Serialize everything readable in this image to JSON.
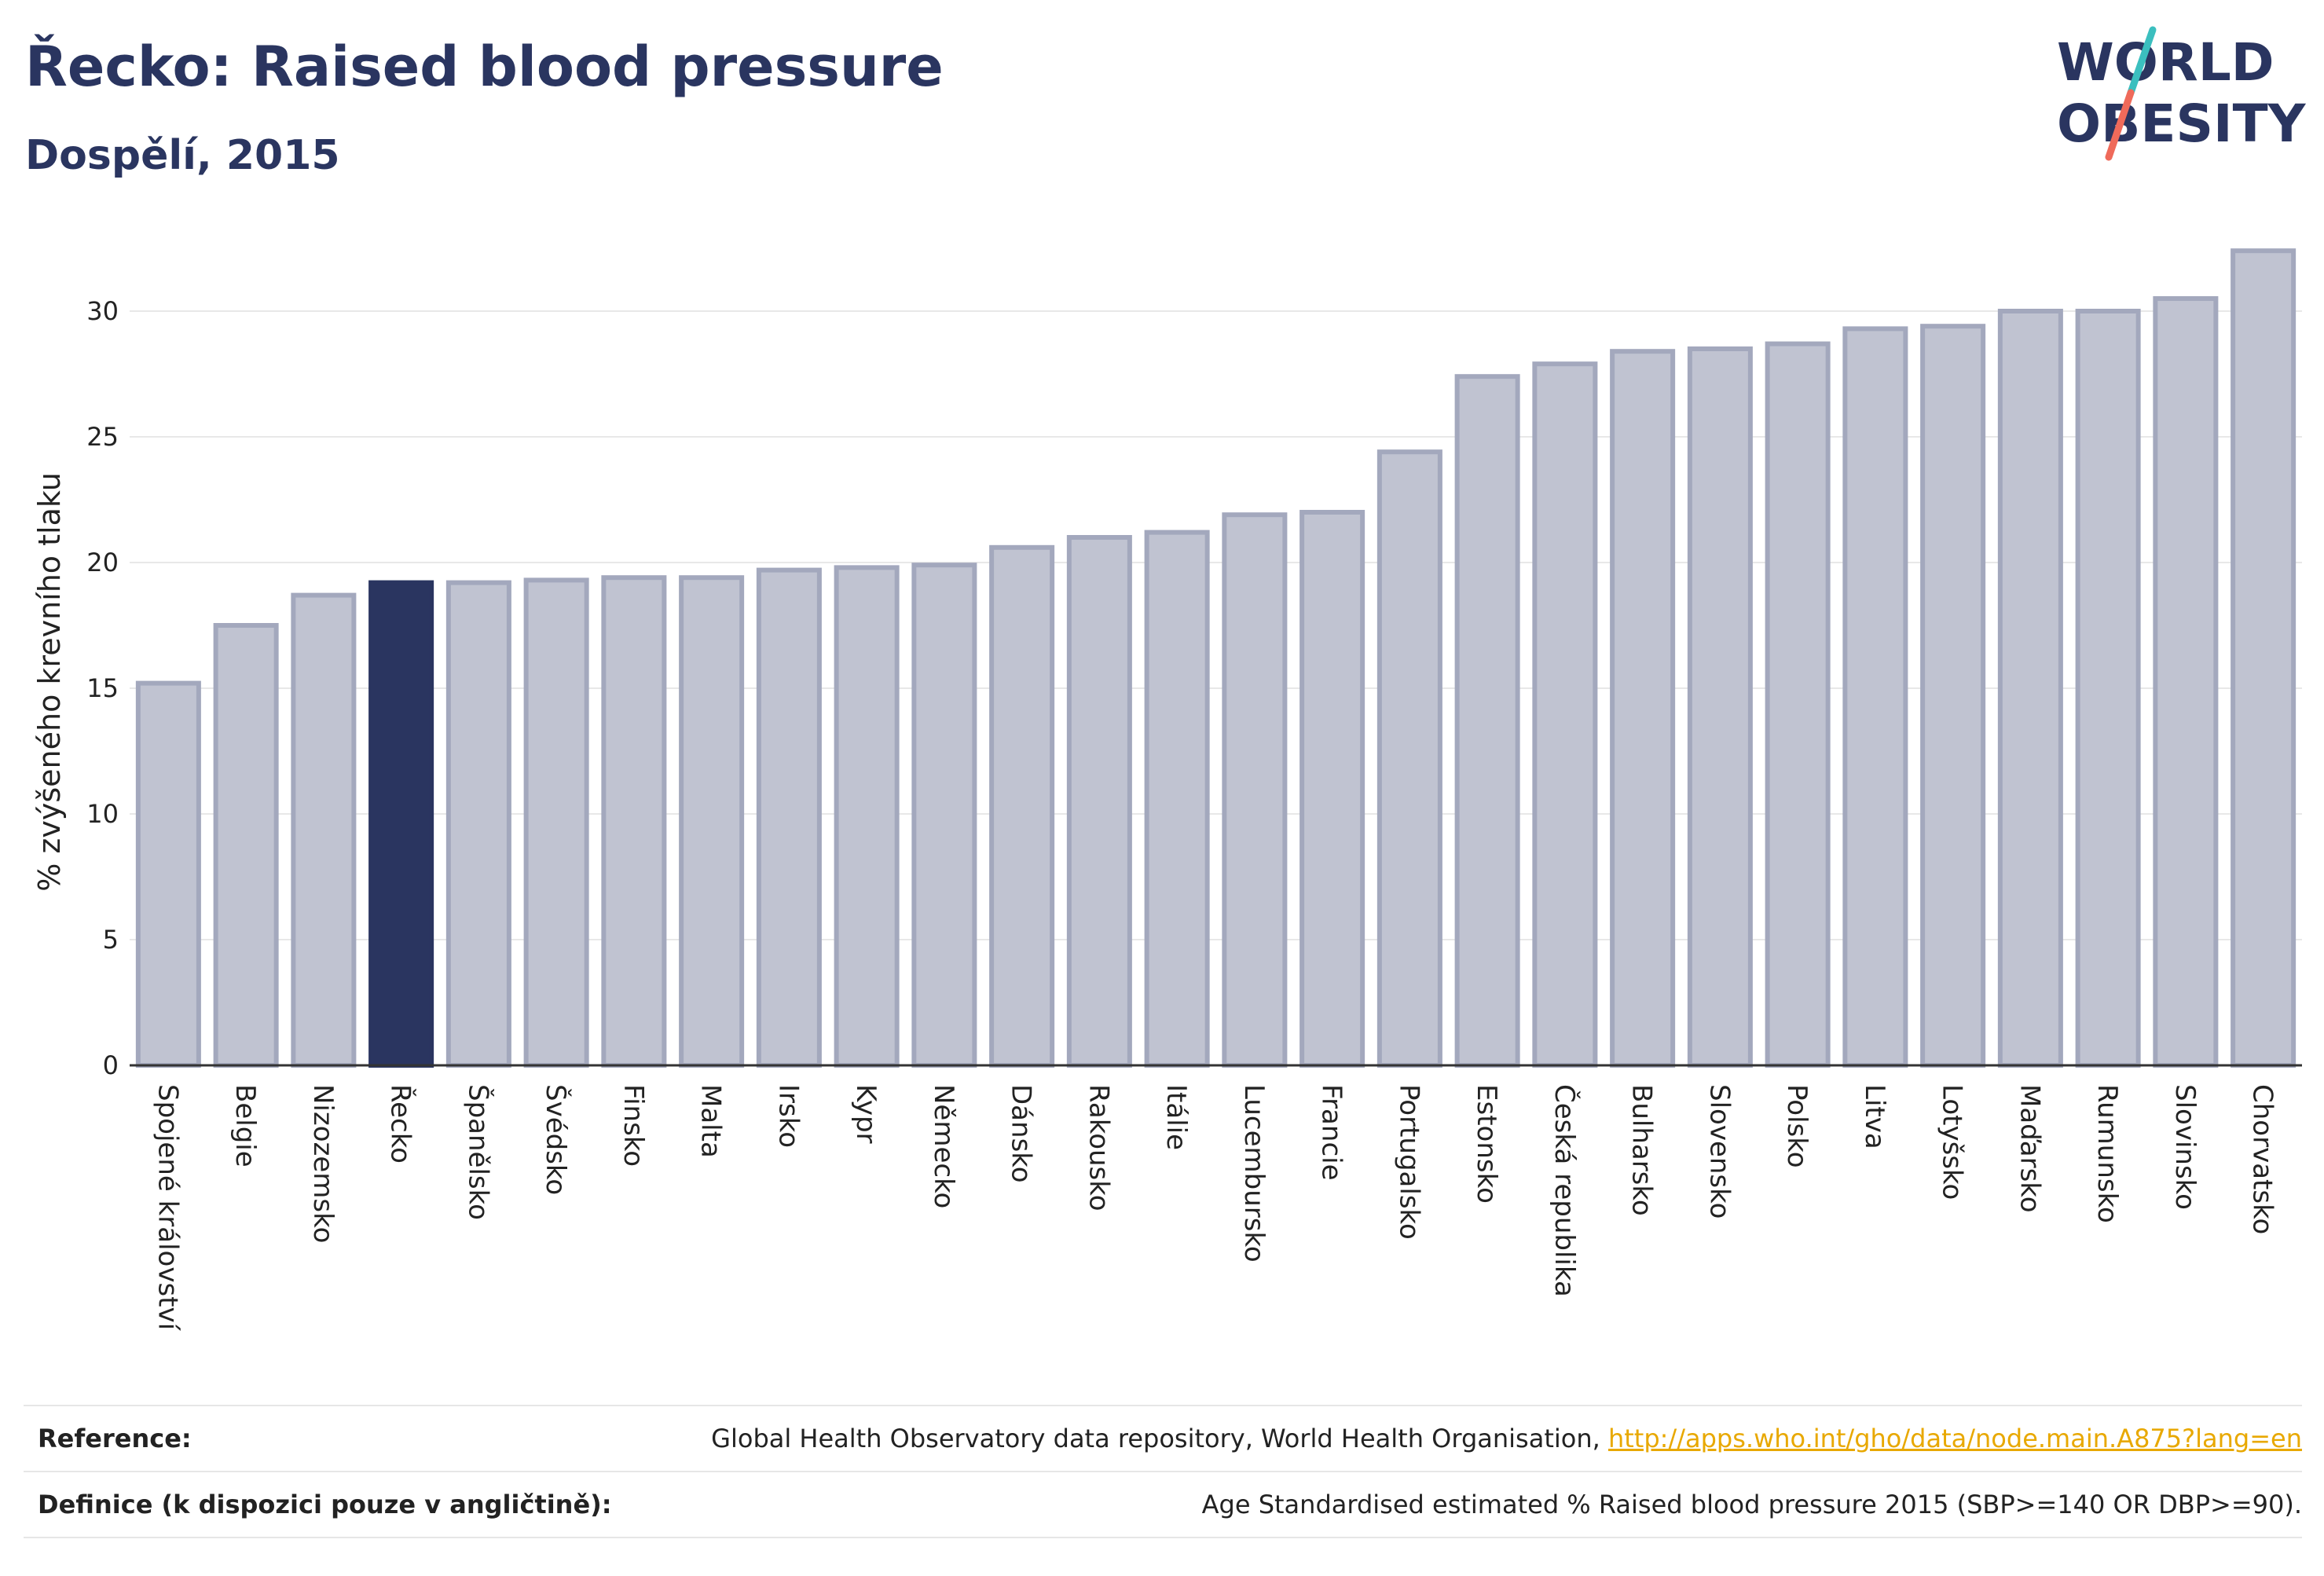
{
  "header": {
    "title": "Řecko: Raised blood pressure",
    "subtitle": "Dospělí, 2015"
  },
  "logo": {
    "line1": "WORLD",
    "line2": "OBESITY",
    "colors": {
      "text": "#2a3560",
      "slash_top": "#3bbfbf",
      "slash_bottom": "#ef6a5a"
    }
  },
  "colors": {
    "bar": "#c0c3d1",
    "bar_edge": "#a3a8bd",
    "highlight": "#2a3560",
    "grid": "#e8e8e8",
    "axis": "#333333"
  },
  "chart_data": {
    "type": "bar",
    "title": "Řecko: Raised blood pressure",
    "subtitle": "Dospělí, 2015",
    "ylabel": "% zvýšeného krevního tlaku",
    "xlabel": "",
    "ylim": [
      0,
      33
    ],
    "yticks": [
      0,
      5,
      10,
      15,
      20,
      25,
      30
    ],
    "grid": true,
    "highlight": "Řecko",
    "categories": [
      "Spojené království",
      "Belgie",
      "Nizozemsko",
      "Řecko",
      "Španělsko",
      "Švédsko",
      "Finsko",
      "Malta",
      "Irsko",
      "Kypr",
      "Německo",
      "Dánsko",
      "Rakousko",
      "Itálie",
      "Lucembursko",
      "Francie",
      "Portugalsko",
      "Estonsko",
      "Česká republika",
      "Bulharsko",
      "Slovensko",
      "Polsko",
      "Litva",
      "Lotyšsko",
      "Maďarsko",
      "Rumunsko",
      "Slovinsko",
      "Chorvatsko"
    ],
    "values": [
      15.2,
      17.5,
      18.7,
      19.2,
      19.2,
      19.3,
      19.4,
      19.4,
      19.7,
      19.8,
      19.9,
      20.6,
      21.0,
      21.2,
      21.9,
      22.0,
      24.4,
      27.4,
      27.9,
      28.4,
      28.5,
      28.7,
      29.3,
      29.4,
      30.0,
      30.0,
      30.5,
      32.4
    ]
  },
  "footer": {
    "reference_label": "Reference:",
    "reference_text": "Global Health Observatory data repository, World Health Organisation, ",
    "reference_link": "http://apps.who.int/gho/data/node.main.A875?lang=en",
    "definition_label": "Definice (k dispozici pouze v angličtině):",
    "definition_text": "Age Standardised estimated % Raised blood pressure 2015 (SBP>=140 OR DBP>=90)."
  }
}
